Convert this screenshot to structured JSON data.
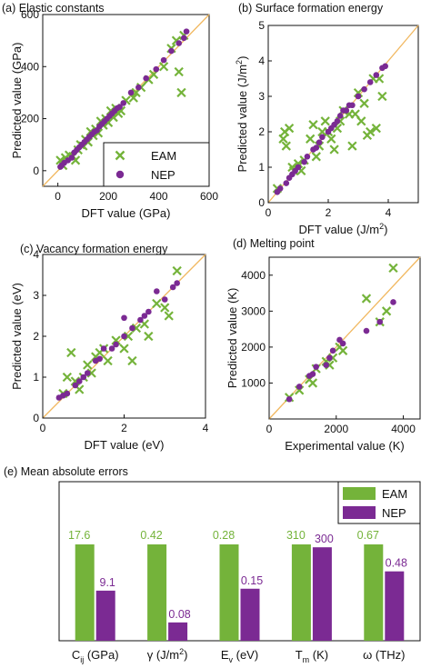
{
  "colors": {
    "eam": "#74b33a",
    "nep": "#7b2a93",
    "diagonal": "#f1b860",
    "axis": "#111111"
  },
  "legend": {
    "eam": "EAM",
    "nep": "NEP"
  },
  "chart_data": [
    {
      "id": "a",
      "type": "scatter",
      "title": "(a) Elastic constants",
      "xlabel": "DFT value (GPa)",
      "ylabel": "Predicted value (GPa)",
      "xlim": [
        -60,
        600
      ],
      "ylim": [
        -60,
        600
      ],
      "xticks": [
        0,
        200,
        400,
        600
      ],
      "yticks": [
        0,
        200,
        400,
        600
      ],
      "diagonal": true,
      "legend_position": "bottom-right",
      "series": [
        {
          "name": "EAM",
          "marker": "x",
          "points": [
            [
              10,
              40
            ],
            [
              20,
              20
            ],
            [
              30,
              50
            ],
            [
              45,
              60
            ],
            [
              60,
              55
            ],
            [
              70,
              40
            ],
            [
              80,
              80
            ],
            [
              90,
              100
            ],
            [
              100,
              95
            ],
            [
              110,
              120
            ],
            [
              120,
              110
            ],
            [
              130,
              150
            ],
            [
              140,
              135
            ],
            [
              150,
              160
            ],
            [
              160,
              145
            ],
            [
              170,
              190
            ],
            [
              180,
              175
            ],
            [
              190,
              200
            ],
            [
              200,
              185
            ],
            [
              210,
              230
            ],
            [
              220,
              205
            ],
            [
              230,
              240
            ],
            [
              240,
              220
            ],
            [
              250,
              230
            ],
            [
              270,
              270
            ],
            [
              300,
              280
            ],
            [
              310,
              300
            ],
            [
              330,
              320
            ],
            [
              360,
              350
            ],
            [
              380,
              370
            ],
            [
              420,
              400
            ],
            [
              450,
              470
            ],
            [
              470,
              500
            ],
            [
              480,
              380
            ],
            [
              490,
              300
            ],
            [
              500,
              520
            ]
          ]
        },
        {
          "name": "NEP",
          "marker": "o",
          "points": [
            [
              10,
              15
            ],
            [
              15,
              20
            ],
            [
              25,
              30
            ],
            [
              40,
              40
            ],
            [
              55,
              50
            ],
            [
              65,
              70
            ],
            [
              75,
              80
            ],
            [
              85,
              90
            ],
            [
              95,
              100
            ],
            [
              105,
              110
            ],
            [
              115,
              120
            ],
            [
              125,
              130
            ],
            [
              135,
              140
            ],
            [
              145,
              150
            ],
            [
              155,
              155
            ],
            [
              165,
              170
            ],
            [
              175,
              180
            ],
            [
              185,
              190
            ],
            [
              195,
              200
            ],
            [
              205,
              210
            ],
            [
              215,
              220
            ],
            [
              225,
              230
            ],
            [
              235,
              240
            ],
            [
              245,
              245
            ],
            [
              260,
              260
            ],
            [
              290,
              300
            ],
            [
              320,
              320
            ],
            [
              350,
              355
            ],
            [
              390,
              390
            ],
            [
              420,
              425
            ],
            [
              450,
              460
            ],
            [
              480,
              490
            ],
            [
              500,
              510
            ],
            [
              510,
              535
            ]
          ]
        }
      ]
    },
    {
      "id": "b",
      "type": "scatter",
      "title": "(b) Surface formation energy",
      "xlabel": "DFT value (J/m",
      "xlabel_sup": "2",
      "xlabel_end": ")",
      "ylabel": "Predicted value (J/m",
      "ylabel_sup": "2",
      "ylabel_end": ")",
      "xlim": [
        0,
        5
      ],
      "ylim": [
        0,
        5
      ],
      "xticks": [
        0,
        2,
        4
      ],
      "yticks": [
        0,
        1,
        2,
        3,
        4,
        5
      ],
      "diagonal": true,
      "series": [
        {
          "name": "EAM",
          "marker": "x",
          "points": [
            [
              0.3,
              0.4
            ],
            [
              0.5,
              1.8
            ],
            [
              0.55,
              2.0
            ],
            [
              0.6,
              1.6
            ],
            [
              0.7,
              2.1
            ],
            [
              0.8,
              1.0
            ],
            [
              0.85,
              0.9
            ],
            [
              1.0,
              1.1
            ],
            [
              1.1,
              0.9
            ],
            [
              1.2,
              1.2
            ],
            [
              1.4,
              1.8
            ],
            [
              1.5,
              2.2
            ],
            [
              1.6,
              1.3
            ],
            [
              1.7,
              1.6
            ],
            [
              1.8,
              2.0
            ],
            [
              1.9,
              2.3
            ],
            [
              2.0,
              2.0
            ],
            [
              2.1,
              1.8
            ],
            [
              2.2,
              1.5
            ],
            [
              2.3,
              2.1
            ],
            [
              2.4,
              2.3
            ],
            [
              2.5,
              2.6
            ],
            [
              2.7,
              2.5
            ],
            [
              2.8,
              1.6
            ],
            [
              2.9,
              2.5
            ],
            [
              3.0,
              3.1
            ],
            [
              3.1,
              2.3
            ],
            [
              3.2,
              2.8
            ],
            [
              3.3,
              1.9
            ],
            [
              3.4,
              2.0
            ],
            [
              3.5,
              3.5
            ],
            [
              3.6,
              2.1
            ],
            [
              3.7,
              3.5
            ],
            [
              3.8,
              3.0
            ]
          ]
        },
        {
          "name": "NEP",
          "marker": "o",
          "points": [
            [
              0.3,
              0.3
            ],
            [
              0.4,
              0.4
            ],
            [
              0.6,
              0.55
            ],
            [
              0.7,
              0.7
            ],
            [
              0.8,
              0.8
            ],
            [
              0.9,
              0.9
            ],
            [
              1.0,
              1.0
            ],
            [
              1.2,
              1.15
            ],
            [
              1.3,
              1.3
            ],
            [
              1.5,
              1.5
            ],
            [
              1.6,
              1.55
            ],
            [
              1.7,
              1.7
            ],
            [
              1.8,
              1.85
            ],
            [
              2.0,
              2.0
            ],
            [
              2.1,
              2.1
            ],
            [
              2.2,
              2.2
            ],
            [
              2.3,
              2.3
            ],
            [
              2.4,
              2.45
            ],
            [
              2.5,
              2.6
            ],
            [
              2.6,
              2.6
            ],
            [
              2.7,
              2.75
            ],
            [
              2.8,
              2.75
            ],
            [
              3.0,
              3.0
            ],
            [
              3.2,
              3.2
            ],
            [
              3.4,
              3.4
            ],
            [
              3.6,
              3.6
            ],
            [
              3.8,
              3.8
            ],
            [
              3.9,
              3.85
            ]
          ]
        }
      ]
    },
    {
      "id": "c",
      "type": "scatter",
      "title": "(c) Vacancy formation energy",
      "xlabel": "DFT value (eV)",
      "ylabel": "Predicted value (eV)",
      "xlim": [
        0,
        4
      ],
      "ylim": [
        0,
        4
      ],
      "xticks": [
        0,
        2,
        4
      ],
      "yticks": [
        0,
        1,
        2,
        3,
        4
      ],
      "diagonal": true,
      "series": [
        {
          "name": "EAM",
          "marker": "x",
          "points": [
            [
              0.5,
              0.6
            ],
            [
              0.6,
              1.0
            ],
            [
              0.7,
              1.6
            ],
            [
              0.8,
              0.9
            ],
            [
              0.9,
              0.7
            ],
            [
              1.0,
              1.0
            ],
            [
              1.1,
              1.3
            ],
            [
              1.2,
              1.1
            ],
            [
              1.3,
              1.5
            ],
            [
              1.4,
              1.6
            ],
            [
              1.5,
              1.7
            ],
            [
              1.6,
              1.4
            ],
            [
              1.8,
              1.9
            ],
            [
              2.0,
              1.7
            ],
            [
              2.1,
              2.0
            ],
            [
              2.2,
              1.4
            ],
            [
              2.3,
              2.2
            ],
            [
              2.5,
              2.3
            ],
            [
              2.6,
              2.0
            ],
            [
              2.8,
              2.8
            ],
            [
              3.0,
              2.7
            ],
            [
              3.1,
              2.5
            ],
            [
              3.3,
              3.6
            ]
          ]
        },
        {
          "name": "NEP",
          "marker": "o",
          "points": [
            [
              0.4,
              0.5
            ],
            [
              0.5,
              0.55
            ],
            [
              0.6,
              0.6
            ],
            [
              0.8,
              0.8
            ],
            [
              0.9,
              0.9
            ],
            [
              1.0,
              1.0
            ],
            [
              1.1,
              1.1
            ],
            [
              1.3,
              1.4
            ],
            [
              1.4,
              1.45
            ],
            [
              1.5,
              1.7
            ],
            [
              1.7,
              1.7
            ],
            [
              1.8,
              1.8
            ],
            [
              2.0,
              2.0
            ],
            [
              2.0,
              2.45
            ],
            [
              2.2,
              2.2
            ],
            [
              2.4,
              2.4
            ],
            [
              2.5,
              2.5
            ],
            [
              2.6,
              2.6
            ],
            [
              2.8,
              3.1
            ],
            [
              3.0,
              2.9
            ],
            [
              3.2,
              3.2
            ],
            [
              3.3,
              3.3
            ]
          ]
        }
      ]
    },
    {
      "id": "d",
      "type": "scatter",
      "title": "(d) Melting point",
      "xlabel": "Experimental value (K)",
      "ylabel": "Predicted value (K)",
      "xlim": [
        0,
        4500
      ],
      "ylim": [
        0,
        4500
      ],
      "xticks": [
        0,
        2000,
        4000
      ],
      "yticks": [
        1000,
        2000,
        3000,
        4000
      ],
      "diagonal": true,
      "series": [
        {
          "name": "EAM",
          "marker": "x",
          "points": [
            [
              600,
              600
            ],
            [
              900,
              800
            ],
            [
              1200,
              1100
            ],
            [
              1300,
              1000
            ],
            [
              1400,
              1400
            ],
            [
              1700,
              1600
            ],
            [
              1800,
              1500
            ],
            [
              1900,
              1700
            ],
            [
              2100,
              2000
            ],
            [
              2200,
              1900
            ],
            [
              2900,
              3350
            ],
            [
              3300,
              2700
            ],
            [
              3500,
              3000
            ],
            [
              3700,
              4200
            ]
          ]
        },
        {
          "name": "NEP",
          "marker": "o",
          "points": [
            [
              600,
              550
            ],
            [
              900,
              900
            ],
            [
              1200,
              1200
            ],
            [
              1300,
              1250
            ],
            [
              1400,
              1450
            ],
            [
              1700,
              1500
            ],
            [
              1800,
              1700
            ],
            [
              1900,
              1900
            ],
            [
              2100,
              2200
            ],
            [
              2200,
              2100
            ],
            [
              2900,
              2450
            ],
            [
              3300,
              2700
            ],
            [
              3700,
              3250
            ]
          ]
        }
      ]
    },
    {
      "id": "e",
      "type": "bar",
      "title": "(e) Mean absolute errors",
      "categories": [
        "C_ij (GPa)",
        "γ (J/m²)",
        "E_v (eV)",
        "T_m (K)",
        "ω (THz)"
      ],
      "category_labels": [
        {
          "main": "C",
          "sub": "ij",
          "tail": " (GPa)"
        },
        {
          "main": "γ (J/m",
          "sup": "2",
          "tail": ")"
        },
        {
          "main": "E",
          "sub": "v",
          "tail": " (eV)"
        },
        {
          "main": "T",
          "sub": "m",
          "tail": " (K)"
        },
        {
          "main": "ω (THz)"
        }
      ],
      "series": [
        {
          "name": "EAM",
          "values": [
            17.6,
            0.42,
            0.28,
            310,
            0.67
          ],
          "labels": [
            "17.6",
            "0.42",
            "0.28",
            "310",
            "0.67"
          ]
        },
        {
          "name": "NEP",
          "values": [
            9.1,
            0.08,
            0.15,
            300,
            0.48
          ],
          "labels": [
            "9.1",
            "0.08",
            "0.15",
            "300",
            "0.48"
          ]
        }
      ],
      "normalized_eam_fraction": 1.0,
      "normalized_nep_fraction": [
        0.52,
        0.19,
        0.54,
        0.97,
        0.72
      ],
      "legend_position": "top-right",
      "yaxis_shown": false
    }
  ]
}
